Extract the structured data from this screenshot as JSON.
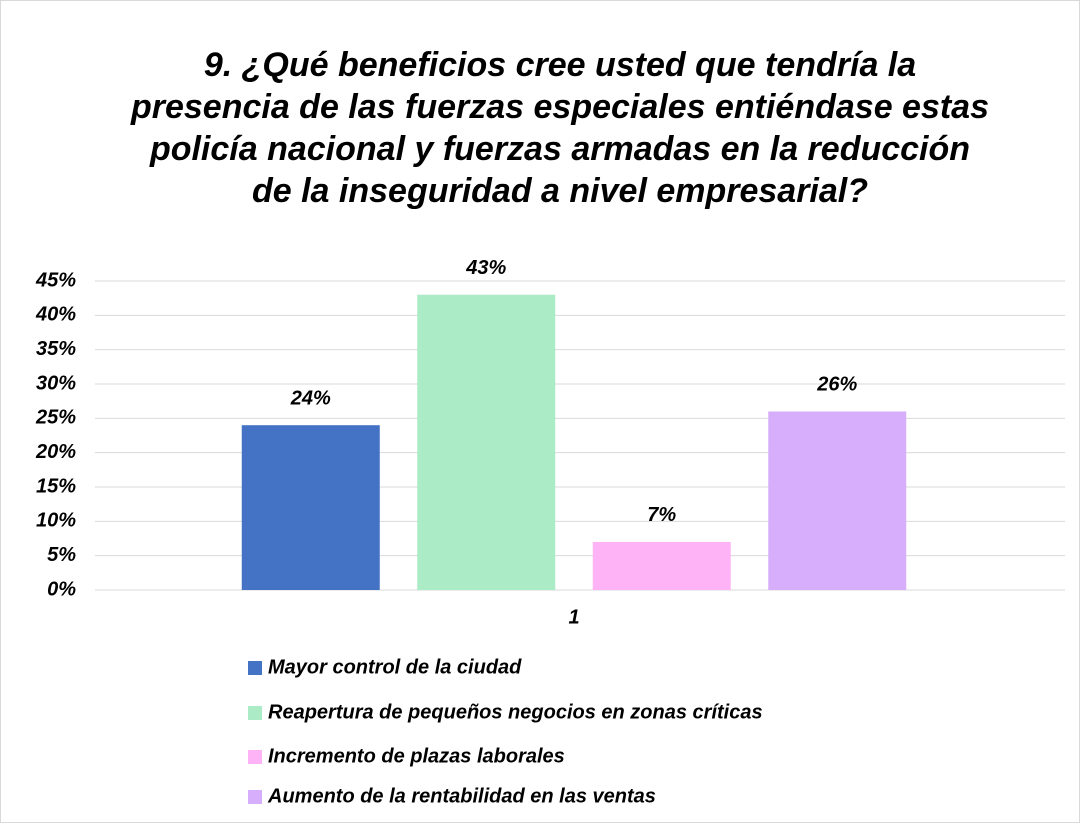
{
  "chart_data": {
    "type": "bar",
    "title": "9. ¿Qué beneficios cree usted que tendría la presencia de las fuerzas especiales entiéndase estas policía nacional y fuerzas armadas en la reducción de la inseguridad a nivel empresarial?",
    "categories": [
      "1"
    ],
    "series": [
      {
        "name": "Mayor control de la ciudad",
        "color": "#4472c4",
        "values": [
          24
        ],
        "value_labels": [
          "24%"
        ]
      },
      {
        "name": "Reapertura de pequeños negocios en zonas críticas",
        "color": "#abebc6",
        "values": [
          43
        ],
        "value_labels": [
          "43%"
        ]
      },
      {
        "name": "Incremento de plazas laborales",
        "color": "#ffb3f7",
        "values": [
          7
        ],
        "value_labels": [
          "7%"
        ]
      },
      {
        "name": "Aumento de la rentabilidad en las ventas",
        "color": "#d7aefb",
        "values": [
          26
        ],
        "value_labels": [
          "26%"
        ]
      }
    ],
    "ylim": [
      0,
      45
    ],
    "yticks": [
      {
        "value": 0,
        "label": "0%"
      },
      {
        "value": 5,
        "label": "5%"
      },
      {
        "value": 10,
        "label": "10%"
      },
      {
        "value": 15,
        "label": "15%"
      },
      {
        "value": 20,
        "label": "20%"
      },
      {
        "value": 25,
        "label": "25%"
      },
      {
        "value": 30,
        "label": "30%"
      },
      {
        "value": 35,
        "label": "35%"
      },
      {
        "value": 40,
        "label": "40%"
      },
      {
        "value": 45,
        "label": "45%"
      }
    ],
    "grid": true,
    "legend": "bottom"
  }
}
